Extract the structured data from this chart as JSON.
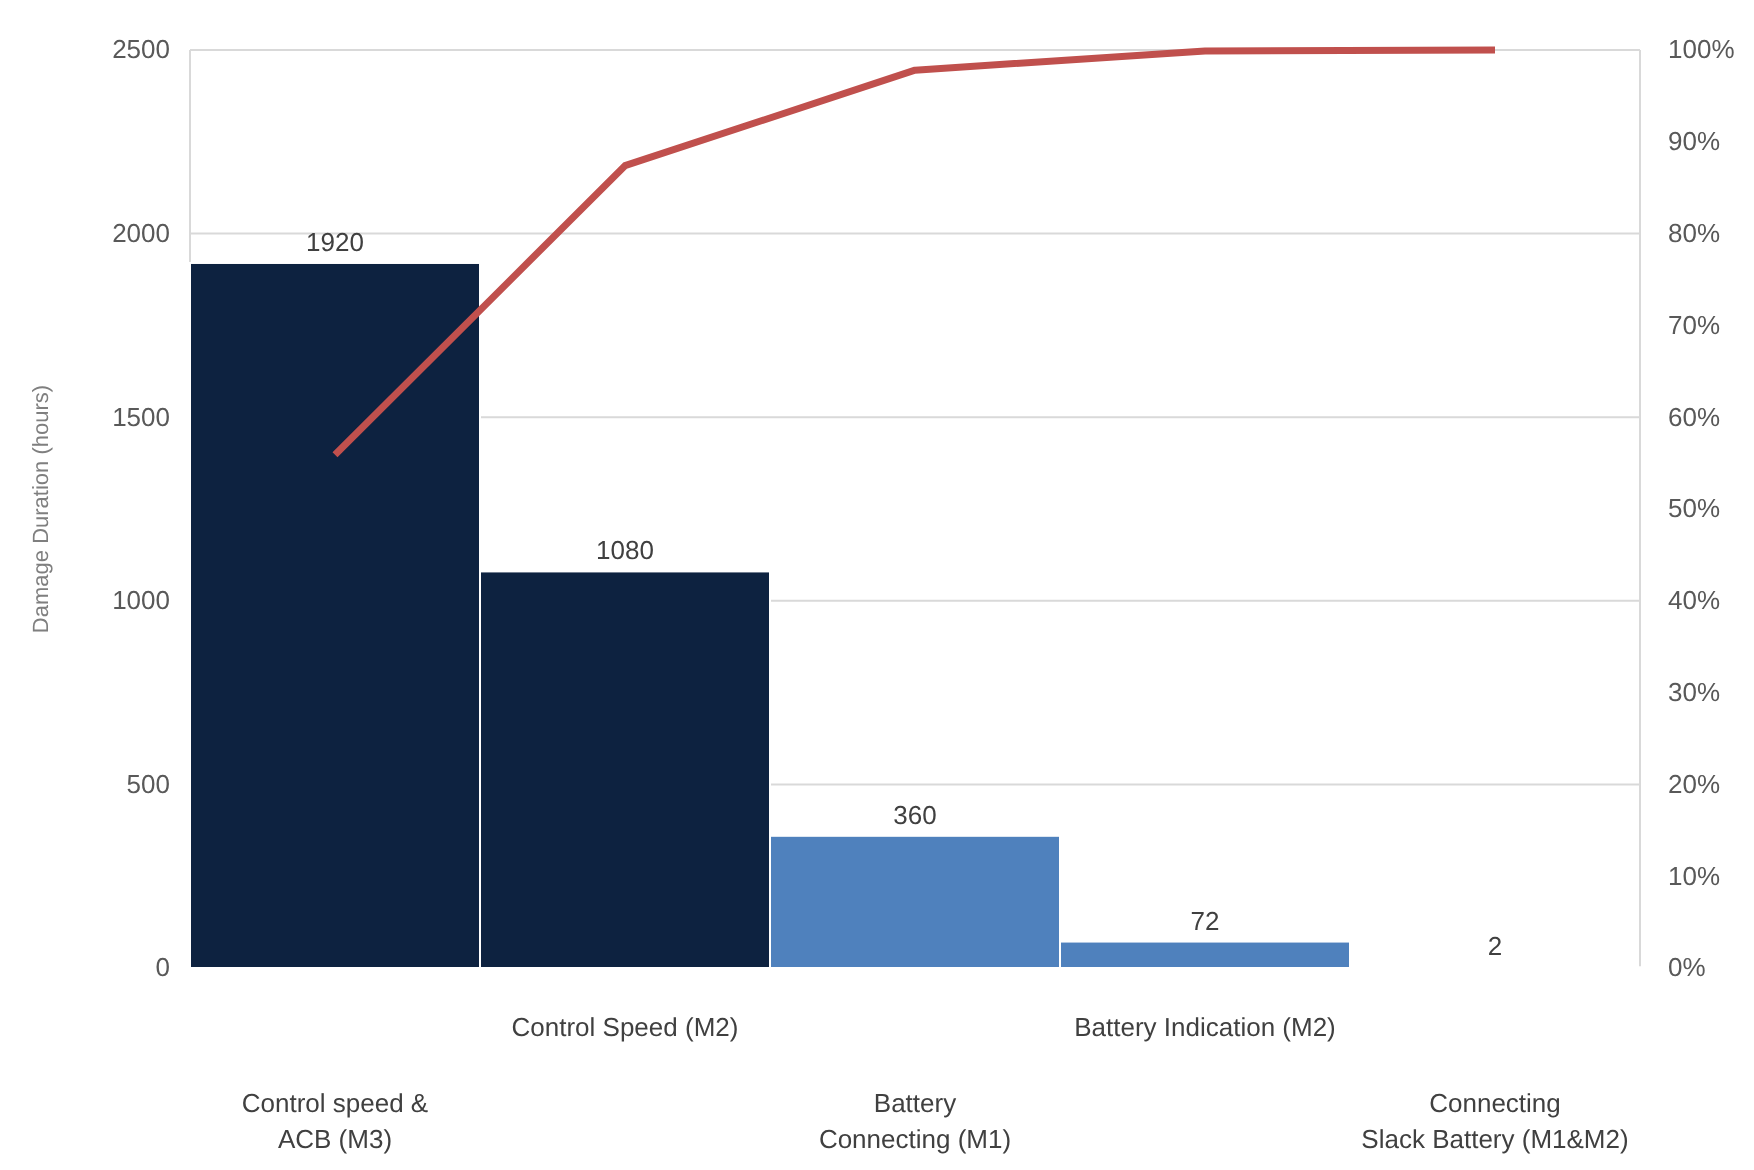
{
  "chart_data": {
    "type": "bar",
    "ylabel": "Damage Duration (hours)",
    "categories": [
      "Control speed & ACB (M3)",
      "Control Speed (M2)",
      "Battery Connecting (M1)",
      "Battery Indication (M2)",
      "Connecting Slack Battery (M1&M2)"
    ],
    "series": [
      {
        "colors": [
          "#0d2240",
          "#0d2240",
          "#4f81bd",
          "#4f81bd",
          "#4f81bd"
        ],
        "values": [
          1920,
          1080,
          360,
          72,
          2
        ],
        "value_labels": [
          "1920",
          "1080",
          "360",
          "72",
          "2"
        ]
      },
      {
        "type": "line",
        "axis": "y2",
        "color": "#c0504d",
        "values": [
          55.9,
          87.4,
          97.8,
          99.9,
          100
        ]
      }
    ],
    "ylim": [
      0,
      2500
    ],
    "yticks": [
      0,
      500,
      1000,
      1500,
      2000,
      2500
    ],
    "y2lim": [
      0,
      100
    ],
    "y2ticks": [
      {
        "value": 0,
        "label": "0%"
      },
      {
        "value": 10,
        "label": "10%"
      },
      {
        "value": 20,
        "label": "20%"
      },
      {
        "value": 30,
        "label": "30%"
      },
      {
        "value": 40,
        "label": "40%"
      },
      {
        "value": 50,
        "label": "50%"
      },
      {
        "value": 60,
        "label": "60%"
      },
      {
        "value": 70,
        "label": "70%"
      },
      {
        "value": 80,
        "label": "80%"
      },
      {
        "value": 90,
        "label": "90%"
      },
      {
        "value": 100,
        "label": "100%"
      }
    ],
    "grid": "y"
  }
}
